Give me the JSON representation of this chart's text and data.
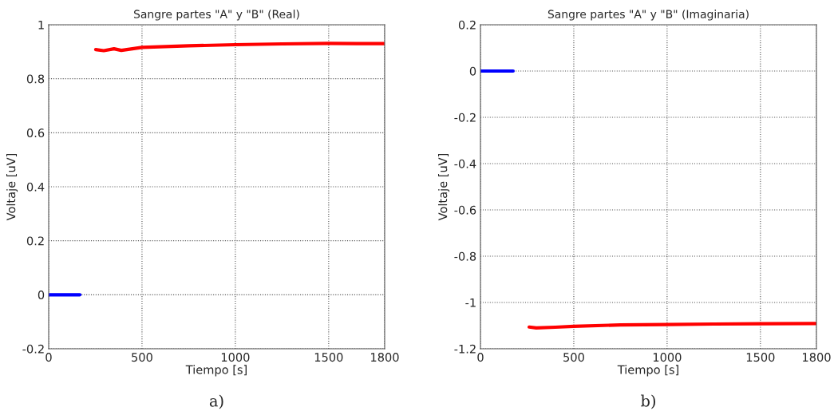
{
  "chart_data": [
    {
      "type": "line",
      "title": "Sangre partes \"A\" y \"B\" (Real)",
      "xlabel": "Tiempo [s]",
      "ylabel": "Voltaje [uV]",
      "series": [
        {
          "color": "#0000ff",
          "x": [
            0,
            167
          ],
          "values": [
            0,
            0
          ]
        },
        {
          "color": "#ff0000",
          "x": [
            252,
            295,
            350,
            389,
            500,
            750,
            1000,
            1250,
            1500,
            1650,
            1800
          ],
          "values": [
            0.908,
            0.904,
            0.911,
            0.905,
            0.916,
            0.922,
            0.926,
            0.929,
            0.931,
            0.93,
            0.93
          ]
        }
      ],
      "xlim": [
        0,
        1800
      ],
      "xticks": [
        0,
        500,
        1000,
        1500,
        1800
      ],
      "ylim": [
        -0.2,
        1
      ],
      "yticks": [
        -0.2,
        0,
        0.2,
        0.4,
        0.6,
        0.8,
        1
      ],
      "grid": true,
      "annotations": [
        "a)"
      ]
    },
    {
      "type": "line",
      "title": "Sangre partes \"A\" y \"B\" (Imaginaria)",
      "xlabel": "Tiempo [s]",
      "ylabel": "Voltaje [uV]",
      "series": [
        {
          "color": "#0000ff",
          "x": [
            0,
            175
          ],
          "values": [
            0,
            0
          ]
        },
        {
          "color": "#ff0000",
          "x": [
            261,
            299,
            400,
            500,
            750,
            1000,
            1250,
            1500,
            1800
          ],
          "values": [
            -1.106,
            -1.11,
            -1.107,
            -1.103,
            -1.097,
            -1.095,
            -1.093,
            -1.092,
            -1.091
          ]
        }
      ],
      "xlim": [
        0,
        1800
      ],
      "xticks": [
        0,
        500,
        1000,
        1500,
        1800
      ],
      "ylim": [
        -1.2,
        0.2
      ],
      "yticks": [
        -1.2,
        -1,
        -0.8,
        -0.6,
        -0.4,
        -0.2,
        0,
        0.2
      ],
      "grid": true,
      "annotations": [
        "b)"
      ]
    }
  ]
}
